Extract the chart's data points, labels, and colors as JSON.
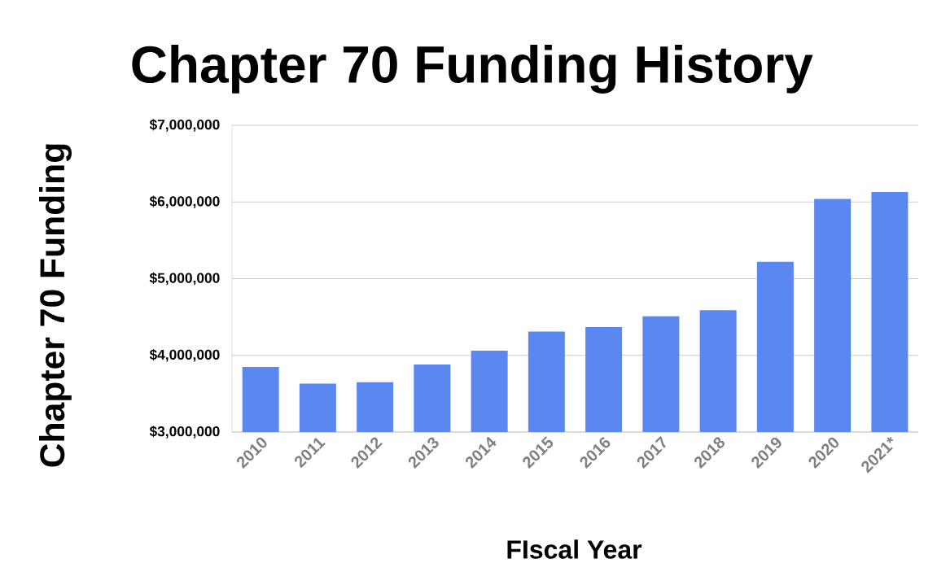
{
  "chart_data": {
    "type": "bar",
    "title": "Chapter 70 Funding History",
    "xlabel": "FIscal Year",
    "ylabel": "Chapter 70 Funding",
    "categories": [
      "2010",
      "2011",
      "2012",
      "2013",
      "2014",
      "2015",
      "2016",
      "2017",
      "2018",
      "2019",
      "2020",
      "2021*"
    ],
    "values": [
      3850000,
      3630000,
      3650000,
      3880000,
      4060000,
      4310000,
      4370000,
      4510000,
      4590000,
      5220000,
      6040000,
      6130000
    ],
    "color": "#5b87f0",
    "ylim": [
      3000000,
      7000000
    ],
    "yticks": [
      {
        "value": 3000000,
        "label": "$3,000,000"
      },
      {
        "value": 4000000,
        "label": "$4,000,000"
      },
      {
        "value": 5000000,
        "label": "$5,000,000"
      },
      {
        "value": 6000000,
        "label": "$6,000,000"
      },
      {
        "value": 7000000,
        "label": "$7,000,000"
      }
    ],
    "grid": "y"
  }
}
